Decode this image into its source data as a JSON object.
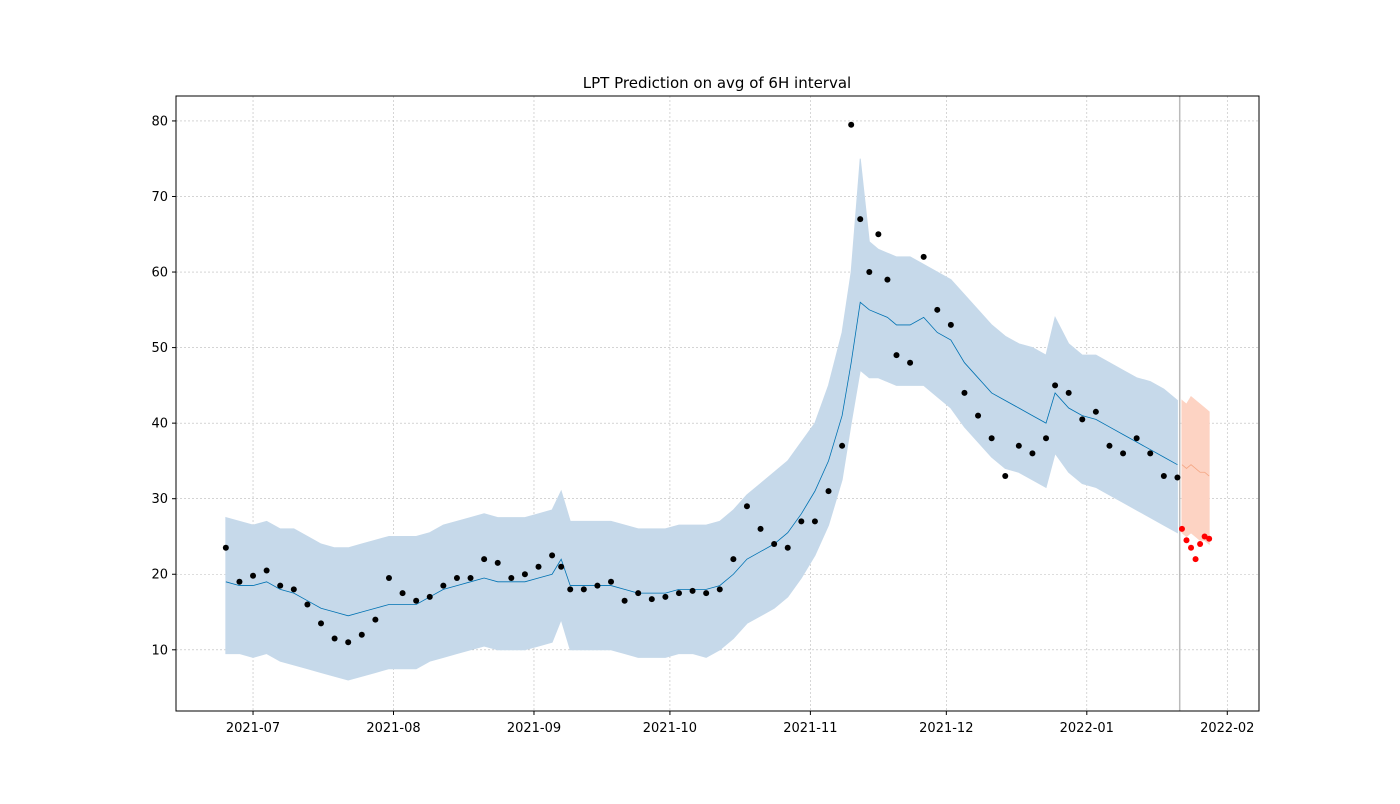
{
  "chart_data": {
    "type": "scatter",
    "title": "LPT Prediction on avg of 6H interval",
    "xlim": [
      "2021-06-14",
      "2022-02-08"
    ],
    "xticks": [
      {
        "value": "2021-07-01",
        "label": "2021-07"
      },
      {
        "value": "2021-08-01",
        "label": "2021-08"
      },
      {
        "value": "2021-09-01",
        "label": "2021-09"
      },
      {
        "value": "2021-10-01",
        "label": "2021-10"
      },
      {
        "value": "2021-11-01",
        "label": "2021-11"
      },
      {
        "value": "2021-12-01",
        "label": "2021-12"
      },
      {
        "value": "2022-01-01",
        "label": "2022-01"
      },
      {
        "value": "2022-02-01",
        "label": "2022-02"
      }
    ],
    "ylim": [
      1.9,
      83.3
    ],
    "yticks": [
      10,
      20,
      30,
      40,
      50,
      60,
      70,
      80
    ],
    "grid": true,
    "history": {
      "point_color": "#000000",
      "line_color": "#0072b2",
      "band_color": "#c6d9ea",
      "x": [
        "2021-06-25",
        "2021-06-28",
        "2021-07-01",
        "2021-07-04",
        "2021-07-07",
        "2021-07-10",
        "2021-07-13",
        "2021-07-16",
        "2021-07-19",
        "2021-07-22",
        "2021-07-25",
        "2021-07-28",
        "2021-07-31",
        "2021-08-03",
        "2021-08-06",
        "2021-08-09",
        "2021-08-12",
        "2021-08-15",
        "2021-08-18",
        "2021-08-21",
        "2021-08-24",
        "2021-08-27",
        "2021-08-30",
        "2021-09-02",
        "2021-09-05",
        "2021-09-07",
        "2021-09-09",
        "2021-09-12",
        "2021-09-15",
        "2021-09-18",
        "2021-09-21",
        "2021-09-24",
        "2021-09-27",
        "2021-09-30",
        "2021-10-03",
        "2021-10-06",
        "2021-10-09",
        "2021-10-12",
        "2021-10-15",
        "2021-10-18",
        "2021-10-21",
        "2021-10-24",
        "2021-10-27",
        "2021-10-30",
        "2021-11-02",
        "2021-11-05",
        "2021-11-08",
        "2021-11-10",
        "2021-11-12",
        "2021-11-14",
        "2021-11-16",
        "2021-11-18",
        "2021-11-20",
        "2021-11-23",
        "2021-11-26",
        "2021-11-29",
        "2021-12-02",
        "2021-12-05",
        "2021-12-08",
        "2021-12-11",
        "2021-12-14",
        "2021-12-17",
        "2021-12-20",
        "2021-12-23",
        "2021-12-25",
        "2021-12-28",
        "2021-12-31",
        "2022-01-03",
        "2022-01-06",
        "2022-01-09",
        "2022-01-12",
        "2022-01-15",
        "2022-01-18",
        "2022-01-21"
      ],
      "actual": [
        23.5,
        19,
        19.8,
        20.5,
        18.5,
        18,
        16,
        13.5,
        11.5,
        11,
        12,
        14,
        19.5,
        17.5,
        16.5,
        17,
        18.5,
        19.5,
        19.5,
        22,
        21.5,
        19.5,
        20,
        21,
        22.5,
        21,
        18,
        18,
        18.5,
        19,
        16.5,
        17.5,
        16.7,
        17,
        17.5,
        17.8,
        17.5,
        18,
        22,
        29,
        26,
        24,
        23.5,
        27,
        27,
        31,
        37,
        79.5,
        67,
        60,
        65,
        59,
        49,
        48,
        62,
        55,
        53,
        44,
        41,
        38,
        33,
        37,
        36,
        38,
        45,
        44,
        40.5,
        41.5,
        37,
        36,
        38,
        36,
        33,
        32.8
      ],
      "yhat": [
        19,
        18.5,
        18.5,
        19,
        18,
        17.5,
        16.5,
        15.5,
        15,
        14.5,
        15,
        15.5,
        16,
        16,
        16,
        17,
        18,
        18.5,
        19,
        19.5,
        19,
        19,
        19,
        19.5,
        20,
        22,
        18.5,
        18.5,
        18.5,
        18.5,
        18,
        17.5,
        17.5,
        17.5,
        18,
        18,
        18,
        18.5,
        20,
        22,
        23,
        24,
        25.5,
        28,
        31,
        35,
        41,
        48,
        56,
        55,
        54.5,
        54,
        53,
        53,
        54,
        52,
        51,
        48,
        46,
        44,
        43,
        42,
        41,
        40,
        44,
        42,
        41,
        40.5,
        39.5,
        38.5,
        37.5,
        36.5,
        35.5,
        34.5
      ],
      "lower": [
        9.5,
        9.5,
        9,
        9.5,
        8.5,
        8,
        7.5,
        7,
        6.5,
        6,
        6.5,
        7,
        7.5,
        7.5,
        7.5,
        8.5,
        9,
        9.5,
        10,
        10.5,
        10,
        10,
        10,
        10.5,
        11,
        14,
        10,
        10,
        10,
        10,
        9.5,
        9,
        9,
        9,
        9.5,
        9.5,
        9,
        10,
        11.5,
        13.5,
        14.5,
        15.5,
        17,
        19.5,
        22.5,
        26.5,
        32.5,
        40,
        47,
        46,
        46,
        45.5,
        45,
        45,
        45,
        43.5,
        42,
        39.5,
        37.5,
        35.5,
        34,
        33.5,
        32.5,
        31.5,
        36,
        33.5,
        32,
        31.5,
        30.5,
        29.5,
        28.5,
        27.5,
        26.5,
        25.5
      ],
      "upper": [
        27.5,
        27,
        26.5,
        27,
        26,
        26,
        25,
        24,
        23.5,
        23.5,
        24,
        24.5,
        25,
        25,
        25,
        25.5,
        26.5,
        27,
        27.5,
        28,
        27.5,
        27.5,
        27.5,
        28,
        28.5,
        31,
        27,
        27,
        27,
        27,
        26.5,
        26,
        26,
        26,
        26.5,
        26.5,
        26.5,
        27,
        28.5,
        30.5,
        32,
        33.5,
        35,
        37.5,
        40,
        45,
        52,
        60,
        75,
        64,
        63,
        62.5,
        62,
        62,
        61,
        60,
        59,
        57,
        55,
        53,
        51.5,
        50.5,
        50,
        49,
        54,
        50.5,
        49,
        49,
        48,
        47,
        46,
        45.5,
        44.5,
        43
      ]
    },
    "forecast": {
      "point_color": "#ff0000",
      "line_color": "#f4a582",
      "band_color": "#fdd3c3",
      "x": [
        "2022-01-22",
        "2022-01-23",
        "2022-01-24",
        "2022-01-25",
        "2022-01-26",
        "2022-01-27",
        "2022-01-28"
      ],
      "actual": [
        26,
        24.5,
        23.5,
        22,
        24,
        25,
        24.7
      ],
      "yhat": [
        34.5,
        34,
        34.5,
        34,
        33.5,
        33.5,
        33
      ],
      "lower": [
        25.5,
        25,
        25.5,
        25,
        24.5,
        24.5,
        24
      ],
      "upper": [
        43,
        42.5,
        43.5,
        43,
        42.5,
        42,
        41.5
      ]
    }
  }
}
